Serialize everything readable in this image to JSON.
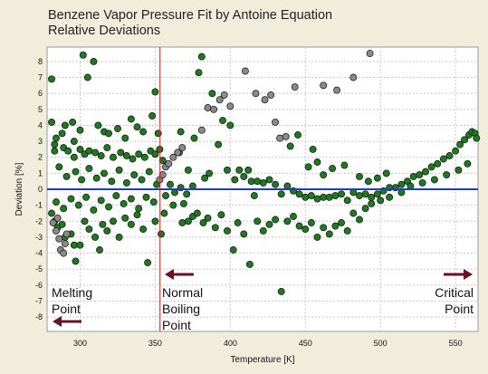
{
  "chart_data": {
    "type": "scatter",
    "title": "Benzene Vapor Pressure Fit by Antoine Equation",
    "subtitle": "Relative Deviations",
    "xlabel": "Temperature [K]",
    "ylabel": "Deviation [%]",
    "xlim": [
      278,
      565
    ],
    "ylim": [
      -8.9,
      8.9
    ],
    "xticks": [
      300,
      350,
      400,
      450,
      500,
      550
    ],
    "yticks": [
      -8,
      -7,
      -6,
      -5,
      -4,
      -3,
      -2,
      -1,
      0,
      1,
      2,
      3,
      4,
      5,
      6,
      7,
      8
    ],
    "grid": true,
    "zero_line": true,
    "reference_lines": [
      {
        "x": 353.2,
        "color": "#cc2222"
      }
    ],
    "annotations": [
      {
        "text": "Melting\nPoint",
        "arrow": "left"
      },
      {
        "text": "Normal\nBoiling\nPoint",
        "arrow": "left"
      },
      {
        "text": "Critical\nPoint",
        "arrow": "right"
      }
    ],
    "series": [
      {
        "color": "#1f7a1f",
        "description": "accepted data points",
        "points": [
          [
            281,
            6.9
          ],
          [
            281,
            4.2
          ],
          [
            284,
            3.2
          ],
          [
            283,
            2.4
          ],
          [
            288,
            3.5
          ],
          [
            290,
            4.0
          ],
          [
            295,
            4.2
          ],
          [
            296,
            3.0
          ],
          [
            300,
            3.7
          ],
          [
            302,
            8.4
          ],
          [
            305,
            7.0
          ],
          [
            309,
            8.0
          ],
          [
            312,
            4.0
          ],
          [
            316,
            3.6
          ],
          [
            319,
            3.5
          ],
          [
            325,
            3.8
          ],
          [
            330,
            3.2
          ],
          [
            334,
            4.4
          ],
          [
            338,
            3.9
          ],
          [
            342,
            3.6
          ],
          [
            348,
            4.6
          ],
          [
            350,
            6.1
          ],
          [
            352,
            3.5
          ],
          [
            283,
            2.8
          ],
          [
            289,
            2.6
          ],
          [
            292,
            2.4
          ],
          [
            296,
            2.0
          ],
          [
            300,
            2.5
          ],
          [
            303,
            2.2
          ],
          [
            306,
            2.4
          ],
          [
            310,
            2.3
          ],
          [
            314,
            2.1
          ],
          [
            318,
            2.6
          ],
          [
            322,
            2.0
          ],
          [
            327,
            2.3
          ],
          [
            331,
            2.1
          ],
          [
            335,
            1.9
          ],
          [
            339,
            2.2
          ],
          [
            343,
            2.0
          ],
          [
            347,
            2.4
          ],
          [
            350,
            2.2
          ],
          [
            353,
            2.5
          ],
          [
            355,
            1.8
          ],
          [
            281,
            -1.5
          ],
          [
            283,
            -2.0
          ],
          [
            285,
            -2.4
          ],
          [
            288,
            -2.2
          ],
          [
            290,
            -3.0
          ],
          [
            294,
            -2.8
          ],
          [
            296,
            -3.5
          ],
          [
            297,
            -4.5
          ],
          [
            300,
            -3.5
          ],
          [
            303,
            -2.0
          ],
          [
            306,
            -2.5
          ],
          [
            310,
            -3.0
          ],
          [
            313,
            -3.8
          ],
          [
            315,
            -2.2
          ],
          [
            318,
            -2.6
          ],
          [
            322,
            -2.0
          ],
          [
            326,
            -3.0
          ],
          [
            330,
            -1.8
          ],
          [
            334,
            -2.2
          ],
          [
            338,
            -1.6
          ],
          [
            342,
            -2.5
          ],
          [
            345,
            -4.6
          ],
          [
            350,
            -2.0
          ],
          [
            354,
            -2.8
          ],
          [
            356,
            -1.5
          ],
          [
            366,
            2.3
          ],
          [
            367,
            3.6
          ],
          [
            369,
            -0.9
          ],
          [
            372,
            1.2
          ],
          [
            376,
            3.2
          ],
          [
            379,
            7.3
          ],
          [
            381,
            8.3
          ],
          [
            383,
            0.7
          ],
          [
            386,
            1.0
          ],
          [
            388,
            6.0
          ],
          [
            392,
            2.8
          ],
          [
            395,
            4.3
          ],
          [
            398,
            1.2
          ],
          [
            400,
            4.0
          ],
          [
            403,
            0.6
          ],
          [
            406,
            1.2
          ],
          [
            409,
            0.8
          ],
          [
            412,
            1.2
          ],
          [
            414,
            0.5
          ],
          [
            416,
            -0.4
          ],
          [
            418,
            0.5
          ],
          [
            422,
            0.4
          ],
          [
            426,
            0.6
          ],
          [
            430,
            0.3
          ],
          [
            434,
            -0.3
          ],
          [
            438,
            0.2
          ],
          [
            442,
            -0.1
          ],
          [
            446,
            -0.3
          ],
          [
            450,
            -0.5
          ],
          [
            454,
            -0.4
          ],
          [
            458,
            -0.6
          ],
          [
            462,
            -0.5
          ],
          [
            466,
            -0.5
          ],
          [
            470,
            -0.4
          ],
          [
            474,
            -0.3
          ],
          [
            478,
            -0.7
          ],
          [
            482,
            -0.2
          ],
          [
            486,
            -0.4
          ],
          [
            490,
            -0.3
          ],
          [
            494,
            -0.5
          ],
          [
            498,
            -0.3
          ],
          [
            502,
            -0.1
          ],
          [
            506,
            0.1
          ],
          [
            510,
            0.1
          ],
          [
            514,
            0.3
          ],
          [
            518,
            0.5
          ],
          [
            522,
            0.8
          ],
          [
            526,
            0.9
          ],
          [
            530,
            1.1
          ],
          [
            534,
            1.4
          ],
          [
            538,
            1.6
          ],
          [
            542,
            1.9
          ],
          [
            546,
            2.1
          ],
          [
            550,
            2.4
          ],
          [
            553,
            2.8
          ],
          [
            556,
            3.1
          ],
          [
            559,
            3.4
          ],
          [
            561,
            3.6
          ],
          [
            563,
            3.5
          ],
          [
            564,
            3.2
          ],
          [
            362,
            -1.0
          ],
          [
            368,
            -2.1
          ],
          [
            372,
            -2.0
          ],
          [
            375,
            -1.7
          ],
          [
            378,
            -1.5
          ],
          [
            382,
            -2.1
          ],
          [
            385,
            -1.8
          ],
          [
            390,
            -2.4
          ],
          [
            394,
            -1.6
          ],
          [
            398,
            -2.6
          ],
          [
            402,
            -3.8
          ],
          [
            405,
            -2.1
          ],
          [
            409,
            -2.8
          ],
          [
            413,
            -4.7
          ],
          [
            418,
            -2.0
          ],
          [
            422,
            -2.6
          ],
          [
            426,
            -2.2
          ],
          [
            430,
            -1.9
          ],
          [
            434,
            -6.4
          ],
          [
            438,
            -2.0
          ],
          [
            442,
            -1.7
          ],
          [
            446,
            -2.3
          ],
          [
            450,
            -2.5
          ],
          [
            454,
            -2.1
          ],
          [
            458,
            -3.0
          ],
          [
            462,
            -2.4
          ],
          [
            466,
            -2.8
          ],
          [
            470,
            -2.3
          ],
          [
            474,
            -2.1
          ],
          [
            478,
            -2.6
          ],
          [
            482,
            -1.5
          ],
          [
            486,
            -1.9
          ],
          [
            490,
            -1.2
          ],
          [
            494,
            -0.9
          ],
          [
            500,
            -0.7
          ],
          [
            506,
            -0.5
          ],
          [
            514,
            -0.2
          ],
          [
            440,
            2.7
          ],
          [
            445,
            3.4
          ],
          [
            452,
            1.4
          ],
          [
            455,
            2.5
          ],
          [
            458,
            1.7
          ],
          [
            462,
            0.9
          ],
          [
            468,
            1.3
          ],
          [
            476,
            1.5
          ],
          [
            486,
            0.8
          ],
          [
            492,
            0.5
          ],
          [
            498,
            0.7
          ],
          [
            504,
            1.0
          ],
          [
            520,
            0.2
          ],
          [
            528,
            0.4
          ],
          [
            536,
            0.6
          ],
          [
            544,
            0.9
          ],
          [
            552,
            1.2
          ],
          [
            558,
            1.6
          ],
          [
            286,
            1.4
          ],
          [
            291,
            0.8
          ],
          [
            297,
            1.1
          ],
          [
            301,
            0.6
          ],
          [
            306,
            1.3
          ],
          [
            311,
            0.7
          ],
          [
            316,
            1.0
          ],
          [
            321,
            0.5
          ],
          [
            326,
            1.2
          ],
          [
            331,
            0.4
          ],
          [
            336,
            0.9
          ],
          [
            341,
            0.6
          ],
          [
            346,
            1.1
          ],
          [
            351,
            0.3
          ],
          [
            284,
            -0.8
          ],
          [
            289,
            -1.2
          ],
          [
            294,
            -0.6
          ],
          [
            299,
            -1.0
          ],
          [
            304,
            -0.5
          ],
          [
            309,
            -1.3
          ],
          [
            314,
            -0.7
          ],
          [
            319,
            -1.1
          ],
          [
            324,
            -0.4
          ],
          [
            329,
            -0.9
          ],
          [
            334,
            -0.6
          ],
          [
            339,
            -1.2
          ],
          [
            344,
            -0.5
          ],
          [
            349,
            -0.8
          ],
          [
            357,
            -0.4
          ],
          [
            360,
            0.3
          ],
          [
            363,
            -0.2
          ],
          [
            367,
            0.1
          ],
          [
            371,
            -0.3
          ],
          [
            375,
            0.2
          ]
        ]
      },
      {
        "color": "#8a8a8a",
        "description": "rejected data points",
        "points": [
          [
            282,
            -2.1
          ],
          [
            284,
            -2.6
          ],
          [
            286,
            -3.1
          ],
          [
            287,
            -3.8
          ],
          [
            289,
            -4.0
          ],
          [
            290,
            -3.4
          ],
          [
            291,
            -2.8
          ],
          [
            285,
            -1.8
          ],
          [
            353,
            0.6
          ],
          [
            355,
            0.9
          ],
          [
            357,
            1.4
          ],
          [
            359,
            1.6
          ],
          [
            362,
            2.0
          ],
          [
            365,
            2.3
          ],
          [
            368,
            2.6
          ],
          [
            381,
            3.7
          ],
          [
            385,
            5.1
          ],
          [
            389,
            5.0
          ],
          [
            393,
            5.6
          ],
          [
            396,
            5.9
          ],
          [
            400,
            5.2
          ],
          [
            410,
            7.4
          ],
          [
            417,
            6.0
          ],
          [
            423,
            5.6
          ],
          [
            427,
            5.9
          ],
          [
            430,
            4.2
          ],
          [
            433,
            3.2
          ],
          [
            437,
            3.3
          ],
          [
            443,
            6.4
          ],
          [
            462,
            6.5
          ],
          [
            471,
            6.2
          ],
          [
            482,
            7.0
          ],
          [
            493,
            8.5
          ]
        ]
      }
    ]
  }
}
